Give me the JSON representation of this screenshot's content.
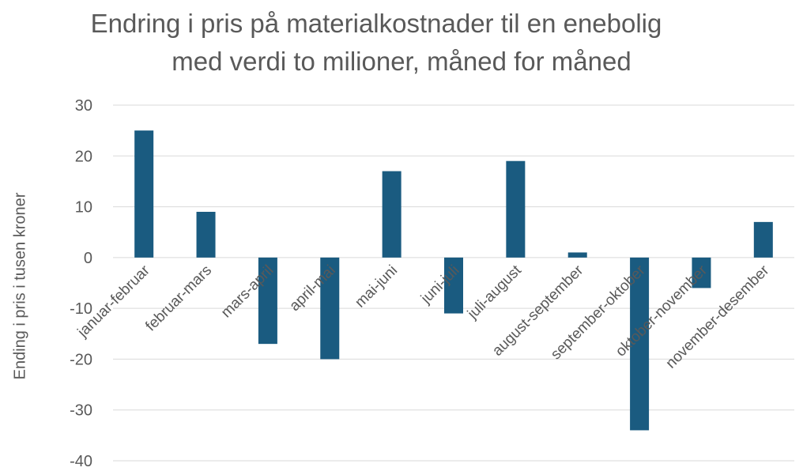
{
  "chart_data": {
    "type": "bar",
    "title_line1": "Endring i pris på materialkostnader til en enebolig",
    "title_line2": "med verdi to milioner, måned for måned",
    "xlabel": "",
    "ylabel": "Ending i pris i  tusen kroner",
    "ylim": [
      -40,
      30
    ],
    "yticks": [
      30,
      20,
      10,
      0,
      -10,
      -20,
      -30,
      -40
    ],
    "grid": true,
    "bar_color": "#1a5b80",
    "categories": [
      "januar-februar",
      "februar-mars",
      "mars-april",
      "april-mai",
      "mai-juni",
      "juni-juli",
      "juli-august",
      "august-september",
      "september-oktober",
      "oktober-november",
      "november-desember"
    ],
    "values": [
      25,
      9,
      -17,
      -20,
      17,
      -11,
      19,
      1,
      -34,
      -6,
      7
    ]
  }
}
